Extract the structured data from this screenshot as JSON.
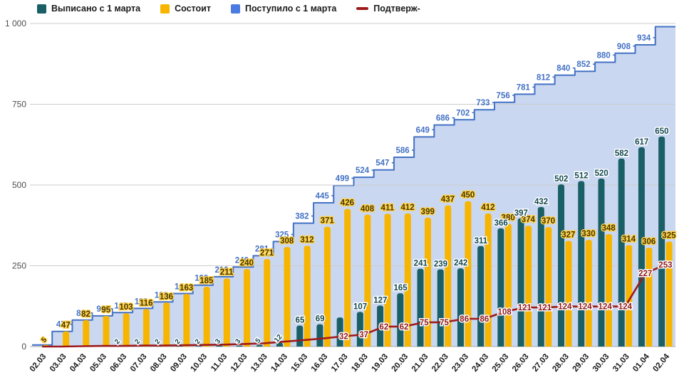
{
  "legend": {
    "items": [
      {
        "label": "Выписано с 1 марта",
        "color": "#1a5f66",
        "shape": "square"
      },
      {
        "label": "Состоит",
        "color": "#f7b500",
        "shape": "square"
      },
      {
        "label": "Поступило с 1 марта",
        "color": "#4b7be0",
        "shape": "square"
      },
      {
        "label": "Подтверж-",
        "color": "#9e1a1a",
        "shape": "line"
      }
    ]
  },
  "y_axis": {
    "ticks": [
      "1 000",
      "750",
      "500",
      "250",
      "0"
    ],
    "tick_values": [
      1000,
      750,
      500,
      250,
      0
    ],
    "min": 0,
    "max": 1000
  },
  "chart_data": {
    "type": "bar",
    "title": "",
    "xlabel": "",
    "ylabel": "",
    "ylim": [
      0,
      1000
    ],
    "grid": true,
    "legend_position": "top",
    "categories": [
      "02.03",
      "03.03",
      "04.03",
      "05.03",
      "06.03",
      "07.03",
      "08.03",
      "09.03",
      "10.03",
      "11.03",
      "12.03",
      "13.03",
      "14.03",
      "15.03",
      "16.03",
      "17.03",
      "18.03",
      "19.03",
      "20.03",
      "21.03",
      "22.03",
      "23.03",
      "24.03",
      "25.03",
      "26.03",
      "27.03",
      "28.03",
      "29.03",
      "30.03",
      "31.03",
      "01.04",
      "02.04"
    ],
    "series": [
      {
        "id": "admitted",
        "name": "Поступило с 1 марта",
        "type": "step-area",
        "fill": "#c9d7f1",
        "stroke": "#4472c4",
        "label_color": "#4472c4",
        "values": [
          5,
          47,
          82,
          95,
          105,
          118,
          138,
          164,
          190,
          216,
          246,
          281,
          325,
          382,
          445,
          499,
          524,
          547,
          586,
          649,
          686,
          702,
          733,
          756,
          781,
          812,
          840,
          852,
          880,
          908,
          934,
          990
        ],
        "labels": [
          "",
          "47",
          "82",
          "95",
          "105",
          "118",
          "138",
          "164",
          "190",
          "216",
          "246",
          "281",
          "325",
          "382",
          "445",
          "499",
          "524",
          "547",
          "586",
          "649",
          "686",
          "702",
          "733",
          "756",
          "781",
          "812",
          "840",
          "852",
          "880",
          "908",
          "934",
          ""
        ]
      },
      {
        "id": "current",
        "name": "Состоит",
        "type": "bar",
        "color": "#f7b500",
        "label_color": "#473700",
        "label_halo": "#ffd24d",
        "values": [
          5,
          47,
          82,
          95,
          103,
          116,
          136,
          163,
          185,
          211,
          240,
          271,
          308,
          312,
          371,
          426,
          408,
          411,
          412,
          399,
          437,
          450,
          412,
          380,
          374,
          370,
          327,
          330,
          348,
          314,
          306,
          325
        ],
        "labels": [
          "5",
          "47",
          "82",
          "95",
          "103",
          "116",
          "136",
          "163",
          "185",
          "211",
          "240",
          "271",
          "308",
          "312",
          "371",
          "426",
          "408",
          "411",
          "412",
          "399",
          "437",
          "450",
          "412",
          "380",
          "374",
          "370",
          "327",
          "330",
          "348",
          "314",
          "306",
          "325"
        ]
      },
      {
        "id": "discharged",
        "name": "Выписано с 1 марта",
        "type": "bar",
        "color": "#1a5f66",
        "label_color": "#124950",
        "label_halo": "#ffffff",
        "values": [
          0,
          0,
          0,
          0,
          2,
          2,
          2,
          2,
          2,
          3,
          3,
          5,
          12,
          65,
          69,
          90,
          107,
          127,
          165,
          241,
          239,
          242,
          311,
          366,
          397,
          432,
          502,
          512,
          520,
          582,
          617,
          650
        ],
        "labels": [
          "",
          "",
          "",
          "",
          "2",
          "2",
          "2",
          "2",
          "2",
          "3",
          "3",
          "5",
          "12",
          "65",
          "69",
          "",
          "107",
          "127",
          "165",
          "241",
          "239",
          "242",
          "311",
          "366",
          "397",
          "432",
          "502",
          "512",
          "520",
          "582",
          "617",
          "650"
        ]
      },
      {
        "id": "confirmed",
        "name": "Подтверж-",
        "type": "line",
        "color": "#9e1a1a",
        "label_color": "#8f1717",
        "label_halo": "#ffffff",
        "values": [
          0,
          0,
          1,
          2,
          2,
          3,
          3,
          4,
          5,
          6,
          8,
          10,
          15,
          20,
          25,
          32,
          37,
          62,
          62,
          75,
          75,
          86,
          86,
          108,
          121,
          121,
          124,
          124,
          124,
          124,
          227,
          253
        ],
        "labels": [
          "",
          "",
          "",
          "",
          "",
          "",
          "",
          "",
          "",
          "",
          "",
          "",
          "",
          "",
          "",
          "32",
          "37",
          "62",
          "62",
          "75",
          "75",
          "86",
          "86",
          "108",
          "121",
          "121",
          "124",
          "124",
          "124",
          "124",
          "227",
          "253"
        ]
      }
    ],
    "colors": {
      "grid": "#cccccc",
      "baseline": "#a8a8a8",
      "axis_text": "#4d4d4d",
      "x_text": "#1a1a1a"
    }
  }
}
